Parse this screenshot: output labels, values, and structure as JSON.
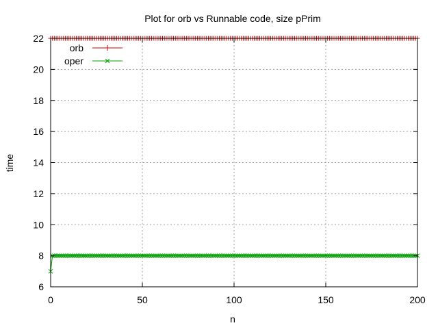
{
  "chart_data": {
    "type": "line",
    "title": "Plot for orb vs Runnable code, size pPrim",
    "xlabel": "n",
    "ylabel": "time",
    "xlim": [
      0,
      200
    ],
    "ylim": [
      6,
      22
    ],
    "x_ticks": [
      "0",
      "50",
      "100",
      "150",
      "200"
    ],
    "y_ticks": [
      "6",
      "8",
      "10",
      "12",
      "14",
      "16",
      "18",
      "20",
      "22"
    ],
    "grid": true,
    "legend_position": "top-left",
    "x": {
      "start": 0,
      "end": 200,
      "step": 1
    },
    "series": [
      {
        "name": "orb",
        "color": "#cc0000",
        "marker": "plus",
        "values_rule": "constant",
        "value": 22
      },
      {
        "name": "oper",
        "color": "#00a000",
        "marker": "cross",
        "values_rule": "first_then_constant",
        "first_value": 7,
        "value": 8
      }
    ]
  }
}
